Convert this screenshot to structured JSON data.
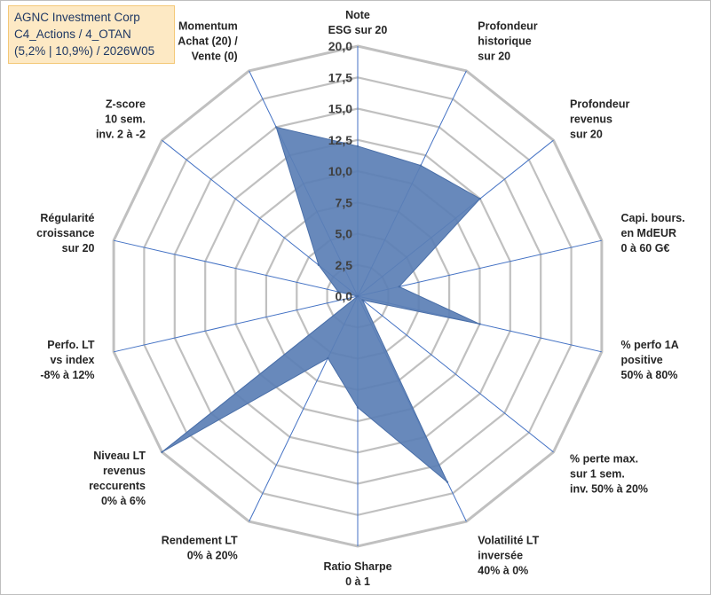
{
  "title_box": {
    "line1": "AGNC Investment Corp",
    "line2": "C4_Actions / 4_OTAN",
    "line3": "(5,2% | 10,9%) / 2026W05"
  },
  "chart_data": {
    "type": "radar",
    "title": "AGNC Investment Corp",
    "rmin": 0,
    "rmax": 20,
    "tick_step": 2.5,
    "tick_labels": [
      "0,0",
      "2,5",
      "5,0",
      "7,5",
      "10,0",
      "12,5",
      "15,0",
      "17,5",
      "20,0"
    ],
    "grid": true,
    "fill_color": "#5b7fb5",
    "grid_color": "#c0c0c0",
    "spoke_color": "#4472c4",
    "axes": [
      {
        "label": [
          "Note",
          "ESG sur 20"
        ],
        "value": 12.0
      },
      {
        "label": [
          "Profondeur",
          "historique",
          "sur 20"
        ],
        "value": 11.6
      },
      {
        "label": [
          "Profondeur",
          "revenus",
          "sur 20"
        ],
        "value": 12.5
      },
      {
        "label": [
          "Capi. bours.",
          "en MdEUR",
          "0 à 60 G€"
        ],
        "value": 3.4
      },
      {
        "label": [
          "% perfo 1A",
          "positive",
          "50% à 80%"
        ],
        "value": 10.0
      },
      {
        "label": [
          "% perte max.",
          "sur 1 sem.",
          "inv. 50% à 20%"
        ],
        "value": 0.5
      },
      {
        "label": [
          "Volatilité LT",
          "inversée",
          "40% à 0%"
        ],
        "value": 16.5
      },
      {
        "label": [
          "Ratio Sharpe",
          "0 à 1"
        ],
        "value": 8.9
      },
      {
        "label": [
          "Rendement LT",
          "0% à 20%"
        ],
        "value": 5.5
      },
      {
        "label": [
          "Niveau LT",
          "revenus",
          "reccurents",
          "0% à 6%"
        ],
        "value": 20.0
      },
      {
        "label": [
          "Perfo. LT",
          "vs index",
          "-8% à 12%"
        ],
        "value": 0.0
      },
      {
        "label": [
          "Régularité",
          "croissance",
          "sur 20"
        ],
        "value": 1.6
      },
      {
        "label": [
          "Z-score",
          "10 sem.",
          "inv. 2 à -2"
        ],
        "value": 4.0
      },
      {
        "label": [
          "Momentum",
          "Achat (20) /",
          "Vente (0)"
        ],
        "value": 15.0
      }
    ]
  }
}
